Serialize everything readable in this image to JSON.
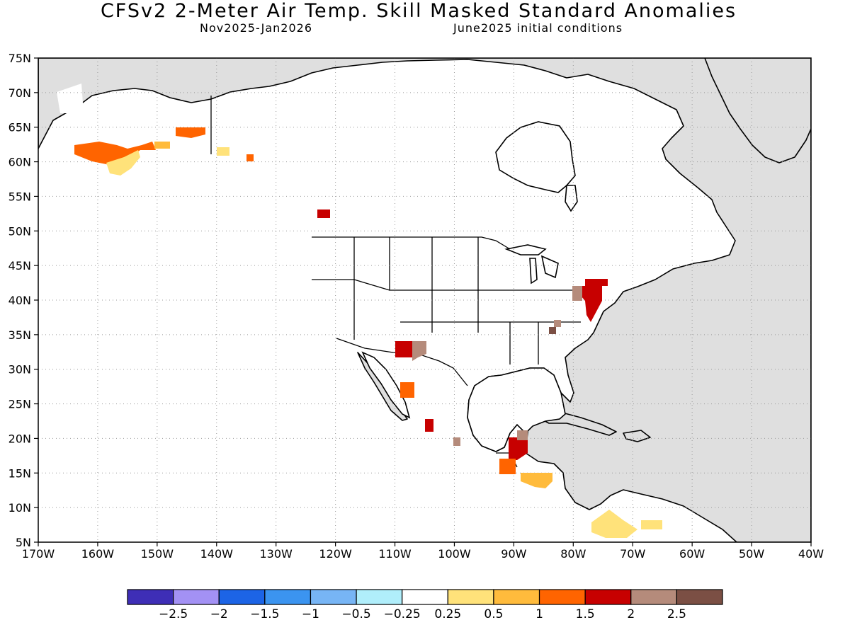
{
  "title": "CFSv2 2-Meter Air Temp. Skill Masked Standard Anomalies",
  "subtitle_left": "Nov2025-Jan2026",
  "subtitle_right": "June2025 initial conditions",
  "lat_labels": [
    "75N",
    "70N",
    "65N",
    "60N",
    "55N",
    "50N",
    "45N",
    "40N",
    "35N",
    "30N",
    "25N",
    "20N",
    "15N",
    "10N",
    "5N"
  ],
  "lon_labels": [
    "170W",
    "160W",
    "150W",
    "140W",
    "130W",
    "120W",
    "110W",
    "100W",
    "90W",
    "80W",
    "70W",
    "60W",
    "50W",
    "40W"
  ],
  "colorbar": {
    "colors": [
      "#3e2eb6",
      "#a391f4",
      "#1c64e6",
      "#3b94f0",
      "#77b5f5",
      "#b0eefb",
      "#ffffff",
      "#ffe27a",
      "#ffbb3c",
      "#ff6400",
      "#c70000",
      "#b58b7b",
      "#7b4f44"
    ],
    "labels": [
      "-2.5",
      "-2",
      "-1.5",
      "-1",
      "-0.5",
      "-0.25",
      "0.25",
      "0.5",
      "1",
      "1.5",
      "2",
      "2.5"
    ]
  },
  "colors": {
    "land_skill": "#dfdfdf",
    "ocean": "#ffffff",
    "coast": "#000000"
  },
  "anomaly_regions": [
    {
      "name": "southwest-alaska",
      "category": "1.5"
    },
    {
      "name": "southwest-alaska-yellow",
      "category": "0.5"
    },
    {
      "name": "interior-alaska",
      "category": "1.5"
    },
    {
      "name": "yukon",
      "category": "0.5"
    },
    {
      "name": "british-columbia",
      "category": "2"
    },
    {
      "name": "new-mexico",
      "category": "2"
    },
    {
      "name": "new-mexico-brown",
      "category": "2.5"
    },
    {
      "name": "pennsylvania-new-jersey",
      "category": "2"
    },
    {
      "name": "new-york",
      "category": "2"
    },
    {
      "name": "appalachia",
      "category": "2.5"
    },
    {
      "name": "western-mexico",
      "category": "1.5"
    },
    {
      "name": "central-mexico",
      "category": "2"
    },
    {
      "name": "yucatan",
      "category": "2"
    },
    {
      "name": "guatemala",
      "category": "1"
    },
    {
      "name": "honduras",
      "category": "0.5"
    },
    {
      "name": "colombia",
      "category": "0.5"
    }
  ]
}
